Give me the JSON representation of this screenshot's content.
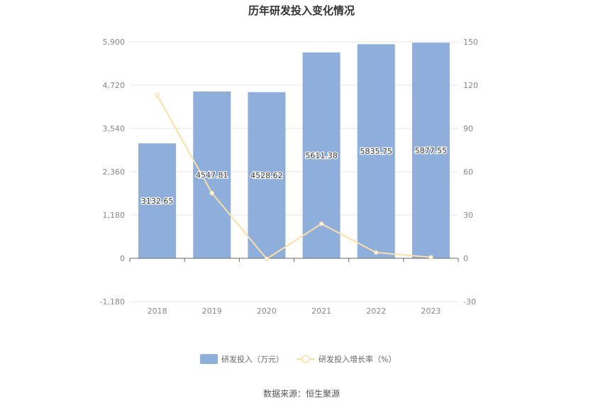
{
  "chart_data": {
    "type": "bar",
    "title": "历年研发投入变化情况",
    "categories": [
      "2018",
      "2019",
      "2020",
      "2021",
      "2022",
      "2023"
    ],
    "series": [
      {
        "name": "研发投入（万元）",
        "type": "bar",
        "axis": "left",
        "color": "#8eaedc",
        "values": [
          3132.65,
          4547.81,
          4528.62,
          5611.38,
          5835.75,
          5877.55
        ],
        "labels": [
          "3132.65",
          "4547.81",
          "4528.62",
          "5611.38",
          "5835.75",
          "5877.55"
        ]
      },
      {
        "name": "研发投入增长率（%）",
        "type": "line",
        "axis": "right",
        "color": "#fbe0a6",
        "values": [
          113.0,
          45.2,
          -0.4,
          23.9,
          4.0,
          0.7
        ]
      }
    ],
    "y_left": {
      "min": -1180,
      "max": 5900,
      "ticks": [
        "-1,180",
        "0",
        "1,180",
        "2,360",
        "3,540",
        "4,720",
        "5,900"
      ],
      "tick_values": [
        -1180,
        0,
        1180,
        2360,
        3540,
        4720,
        5900
      ]
    },
    "y_right": {
      "min": -30,
      "max": 150,
      "ticks": [
        "-30",
        "0",
        "30",
        "60",
        "90",
        "120",
        "150"
      ],
      "tick_values": [
        -30,
        0,
        30,
        60,
        90,
        120,
        150
      ]
    },
    "grid": true,
    "legend_position": "bottom"
  },
  "footer": {
    "source": "数据来源：恒生聚源"
  }
}
